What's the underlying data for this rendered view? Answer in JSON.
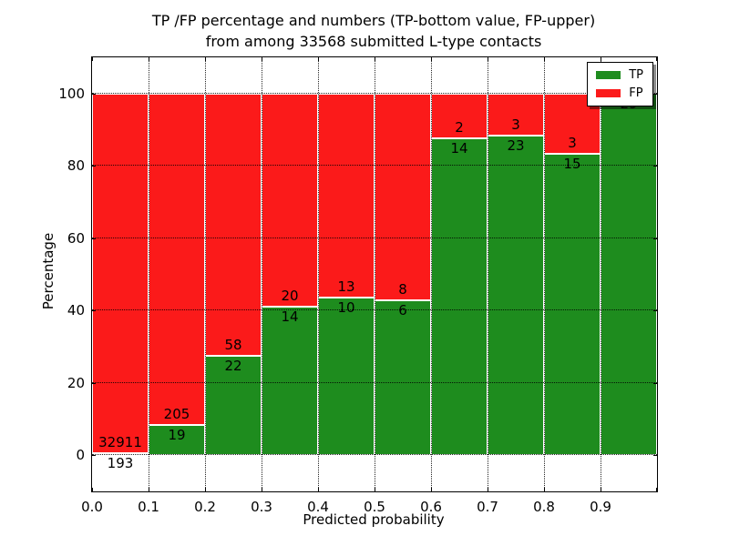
{
  "title": {
    "line1": "TP /FP percentage and numbers (TP-bottom value, FP-upper)",
    "line2": "from among 33568 submitted L-type contacts"
  },
  "chart_data": {
    "type": "bar",
    "stacked": true,
    "title": "TP /FP percentage and numbers (TP-bottom value, FP-upper)\nfrom among 33568 submitted L-type contacts",
    "xlabel": "Predicted probability",
    "ylabel": "Percentage",
    "x_bins": [
      0.0,
      0.1,
      0.2,
      0.3,
      0.4,
      0.5,
      0.6,
      0.7,
      0.8,
      0.9
    ],
    "bin_width": 0.1,
    "series": [
      {
        "name": "TP",
        "color": "#1e8c1e",
        "counts": [
          193,
          19,
          22,
          14,
          10,
          6,
          14,
          23,
          15,
          29
        ]
      },
      {
        "name": "FP",
        "color": "#fb1a1a",
        "counts": [
          32911,
          205,
          58,
          20,
          13,
          8,
          2,
          3,
          3,
          0
        ]
      }
    ],
    "tp_percent_approx": [
      0.58,
      8.48,
      27.5,
      41.18,
      43.48,
      42.86,
      87.5,
      88.46,
      83.33,
      100.0
    ],
    "x_tick_labels": [
      "0.0",
      "0.1",
      "0.2",
      "0.3",
      "0.4",
      "0.5",
      "0.6",
      "0.7",
      "0.8",
      "0.9"
    ],
    "y_tick_values": [
      0,
      20,
      40,
      60,
      80,
      100
    ],
    "y_tick_labels": [
      "0",
      "20",
      "40",
      "60",
      "80",
      "100"
    ],
    "xlim": [
      0.0,
      1.0
    ],
    "ylim": [
      -10,
      110
    ],
    "grid": "dotted",
    "legend": {
      "position": "upper right",
      "entries": [
        {
          "label": "TP",
          "color": "#1e8c1e"
        },
        {
          "label": "FP",
          "color": "#fb1a1a"
        }
      ]
    }
  },
  "colors": {
    "tp_green": "#1e8c1e",
    "fp_red": "#fb1a1a",
    "background": "#ffffff",
    "frame": "#000000"
  }
}
